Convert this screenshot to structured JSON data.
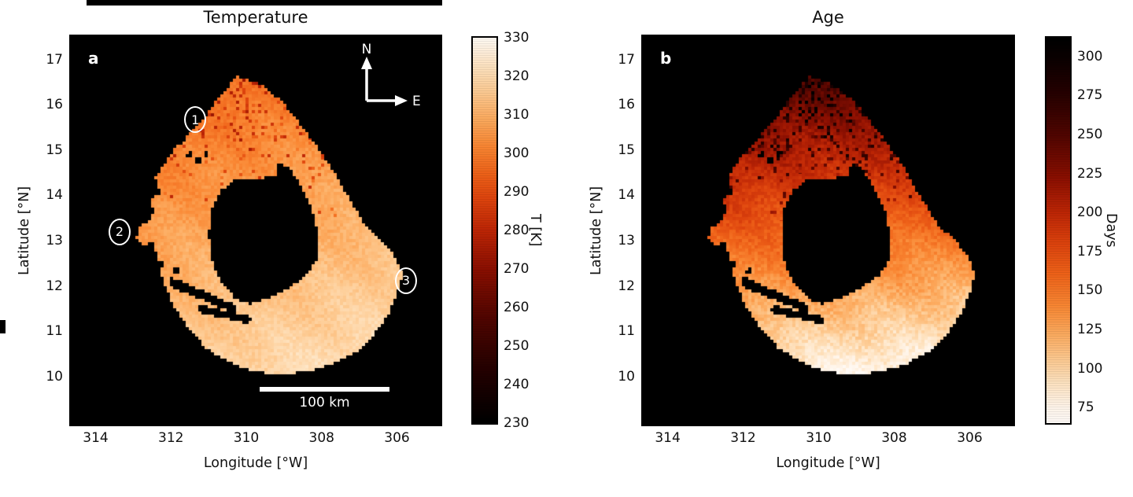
{
  "panels": {
    "a": {
      "title": "Temperature",
      "corner_label": "a",
      "xlabel": "Longitude [°W]",
      "ylabel": "Latitude [°N]",
      "colorbar_label": "T [K]",
      "compass": {
        "north": "N",
        "east": "E"
      },
      "scale_bar_label": "100 km"
    },
    "b": {
      "title": "Age",
      "corner_label": "b",
      "xlabel": "Longitude [°W]",
      "ylabel": "Latitude [°N]",
      "colorbar_label": "Days"
    }
  },
  "chart_data": [
    {
      "type": "heatmap",
      "title": "Temperature",
      "panel_label": "a",
      "xlabel": "Longitude [°W]",
      "ylabel": "Latitude [°N]",
      "x_axis_reversed": true,
      "x_range": [
        314.7,
        304.8
      ],
      "y_range": [
        17.55,
        8.9
      ],
      "x_ticks": [
        314,
        312,
        310,
        308,
        306
      ],
      "y_ticks": [
        17,
        16,
        15,
        14,
        13,
        12,
        11,
        10
      ],
      "background_color": "#000000",
      "grid": false,
      "colorbar": {
        "label": "T [K]",
        "vmin": 230,
        "vmax": 330,
        "ticks": [
          330,
          320,
          310,
          300,
          290,
          280,
          270,
          260,
          250,
          240,
          230
        ]
      },
      "field": {
        "description": "ring-shaped lava lake surface temperature, K; cooler dark-red north rim, warm pale south/east floor",
        "base": 323,
        "lat_ref": 10,
        "lat_coeff": -3.4,
        "lon_ref": 306,
        "lon_coeff": -0.9,
        "noise": 2.6,
        "stripe_amp": 1.6,
        "speckle_lat_min": 13.4,
        "speckle_prob": 0.09,
        "speckle_delta": -17
      },
      "colormap_stops": [
        [
          230,
          0,
          0,
          0
        ],
        [
          245,
          40,
          2,
          0
        ],
        [
          258,
          84,
          6,
          0
        ],
        [
          270,
          140,
          16,
          2
        ],
        [
          280,
          190,
          38,
          6
        ],
        [
          288,
          222,
          68,
          14
        ],
        [
          295,
          240,
          100,
          26
        ],
        [
          302,
          250,
          136,
          52
        ],
        [
          309,
          253,
          172,
          96
        ],
        [
          316,
          254,
          204,
          148
        ],
        [
          323,
          255,
          229,
          196
        ],
        [
          330,
          255,
          252,
          246
        ]
      ],
      "region": {
        "outer": [
          [
            310.28,
            16.63
          ],
          [
            309.66,
            16.48
          ],
          [
            309.03,
            16.05
          ],
          [
            308.3,
            15.27
          ],
          [
            307.78,
            14.67
          ],
          [
            307.37,
            14.06
          ],
          [
            306.85,
            13.37
          ],
          [
            306.33,
            12.94
          ],
          [
            306.01,
            12.6
          ],
          [
            305.85,
            12.25
          ],
          [
            306.01,
            11.82
          ],
          [
            306.22,
            11.39
          ],
          [
            306.57,
            10.96
          ],
          [
            307.05,
            10.56
          ],
          [
            307.68,
            10.27
          ],
          [
            308.41,
            10.1
          ],
          [
            309.14,
            10.05
          ],
          [
            309.87,
            10.12
          ],
          [
            310.49,
            10.32
          ],
          [
            311.08,
            10.63
          ],
          [
            311.53,
            11.05
          ],
          [
            311.91,
            11.53
          ],
          [
            312.2,
            12.08
          ],
          [
            312.37,
            12.6
          ],
          [
            312.45,
            12.94
          ],
          [
            312.74,
            12.91
          ],
          [
            312.95,
            13.03
          ],
          [
            312.83,
            13.29
          ],
          [
            312.58,
            13.43
          ],
          [
            312.45,
            13.64
          ],
          [
            312.53,
            13.9
          ],
          [
            312.37,
            14.15
          ],
          [
            312.41,
            14.41
          ],
          [
            312.22,
            14.64
          ],
          [
            312.05,
            14.84
          ],
          [
            311.91,
            15.02
          ],
          [
            311.64,
            15.22
          ],
          [
            311.32,
            15.53
          ],
          [
            311.08,
            15.74
          ],
          [
            310.87,
            16.02
          ],
          [
            310.6,
            16.26
          ]
        ],
        "hole": [
          [
            310.28,
            14.36
          ],
          [
            309.2,
            14.41
          ],
          [
            309.14,
            14.71
          ],
          [
            308.87,
            14.64
          ],
          [
            308.51,
            14.15
          ],
          [
            308.24,
            13.67
          ],
          [
            308.1,
            13.12
          ],
          [
            308.14,
            12.57
          ],
          [
            308.41,
            12.22
          ],
          [
            308.87,
            11.95
          ],
          [
            309.35,
            11.74
          ],
          [
            309.91,
            11.6
          ],
          [
            310.28,
            11.71
          ],
          [
            310.65,
            12.05
          ],
          [
            310.9,
            12.52
          ],
          [
            310.99,
            13.12
          ],
          [
            310.94,
            13.67
          ],
          [
            310.69,
            14.1
          ]
        ],
        "cuts": [
          [
            [
              312.0,
              12.2
            ],
            [
              310.28,
              11.58
            ],
            [
              310.33,
              11.4
            ],
            [
              312.06,
              12.0
            ]
          ],
          [
            [
              311.22,
              11.58
            ],
            [
              309.87,
              11.32
            ],
            [
              309.91,
              11.16
            ],
            [
              311.28,
              11.42
            ]
          ]
        ],
        "spots": [
          [
            312.33,
            12.47,
            0.14,
            0.09
          ],
          [
            311.85,
            12.32,
            0.1,
            0.07
          ],
          [
            311.28,
            14.75,
            0.1,
            0.09
          ],
          [
            311.06,
            14.93,
            0.08,
            0.07
          ],
          [
            311.5,
            14.9,
            0.09,
            0.08
          ],
          [
            312.35,
            14.05,
            0.09,
            0.08
          ]
        ]
      },
      "annotations": {
        "markers": [
          {
            "label": "1",
            "fx": 0.338,
            "fy": 0.217
          },
          {
            "label": "2",
            "fx": 0.135,
            "fy": 0.504
          },
          {
            "label": "3",
            "fx": 0.903,
            "fy": 0.628
          }
        ],
        "scale_bar": {
          "label": "100 km"
        },
        "compass": {
          "north": "N",
          "east": "E"
        }
      }
    },
    {
      "type": "heatmap",
      "title": "Age",
      "panel_label": "b",
      "xlabel": "Longitude [°W]",
      "ylabel": "Latitude [°N]",
      "x_axis_reversed": true,
      "x_range": [
        314.7,
        304.8
      ],
      "y_range": [
        17.55,
        8.9
      ],
      "x_ticks": [
        314,
        312,
        310,
        308,
        306
      ],
      "y_ticks": [
        17,
        16,
        15,
        14,
        13,
        12,
        11,
        10
      ],
      "background_color": "#000000",
      "grid": false,
      "colorbar": {
        "label": "Days",
        "vmin": 65,
        "vmax": 312,
        "ticks": [
          300,
          275,
          250,
          225,
          200,
          175,
          150,
          125,
          100,
          75
        ]
      },
      "field": {
        "description": "resurfacing age in days; oldest (dark) north rim, youngest (pale) south floor",
        "base": 68,
        "lat_ref": 10,
        "lat_coeff": 26,
        "lon_ref": 306,
        "lon_coeff": 2.2,
        "noise": 9,
        "stripe_amp": 5,
        "speckle_lat_min": 13.4,
        "speckle_prob": 0.14,
        "speckle_delta": 60
      },
      "colormap_stops": [
        [
          60,
          255,
          255,
          255
        ],
        [
          75,
          255,
          246,
          236
        ],
        [
          90,
          255,
          229,
          196
        ],
        [
          105,
          254,
          204,
          148
        ],
        [
          122,
          253,
          172,
          96
        ],
        [
          140,
          250,
          136,
          52
        ],
        [
          160,
          240,
          100,
          26
        ],
        [
          180,
          222,
          68,
          14
        ],
        [
          200,
          190,
          38,
          6
        ],
        [
          222,
          140,
          16,
          2
        ],
        [
          248,
          84,
          6,
          0
        ],
        [
          275,
          40,
          2,
          0
        ],
        [
          300,
          10,
          0,
          0
        ],
        [
          312,
          0,
          0,
          0
        ]
      ],
      "region_ref": 0,
      "annotations": {
        "markers": []
      }
    }
  ]
}
